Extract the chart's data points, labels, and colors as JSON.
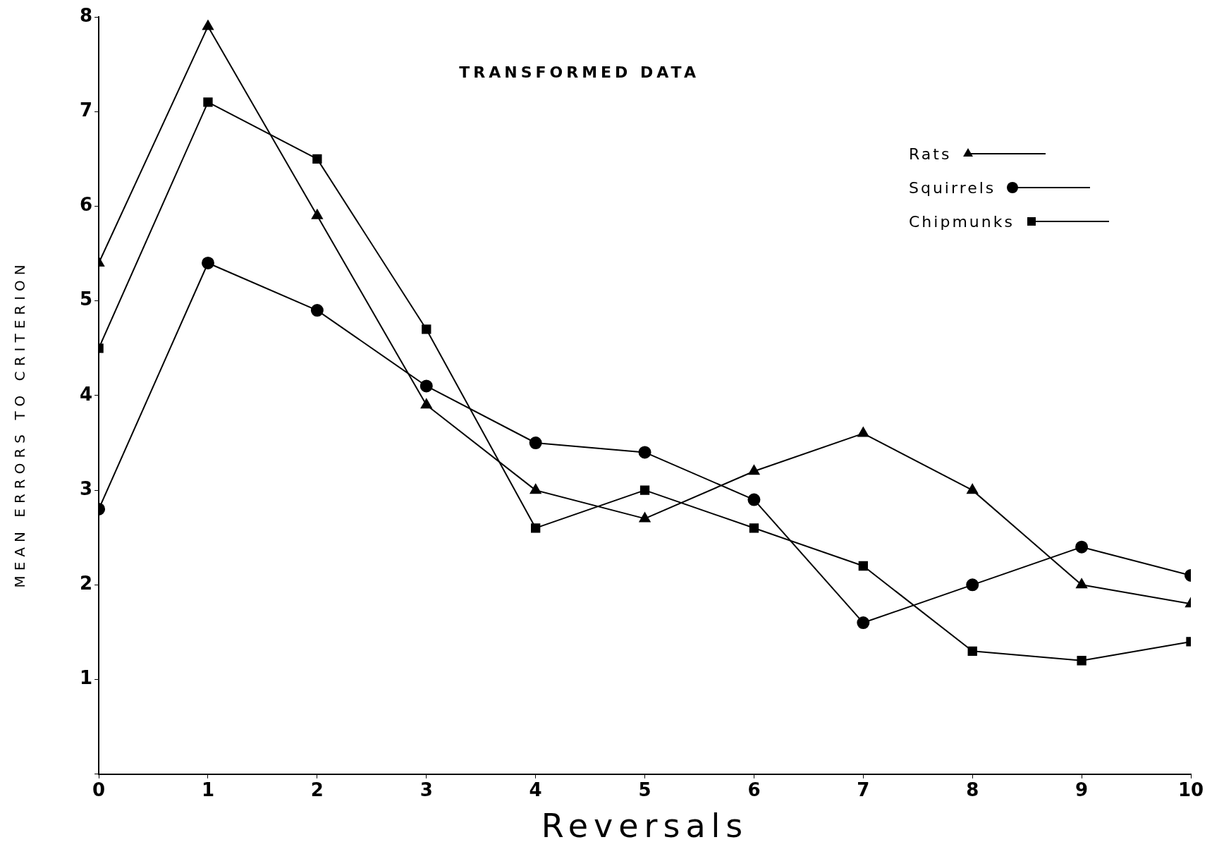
{
  "chart_data": {
    "type": "line",
    "title": "TRANSFORMED DATA",
    "xlabel": "Reversals",
    "ylabel": "MEAN ERRORS TO CRITERION",
    "x": [
      0,
      1,
      2,
      3,
      4,
      5,
      6,
      7,
      8,
      9,
      10
    ],
    "xlim": [
      0,
      10
    ],
    "xticks": [
      0,
      1,
      2,
      3,
      4,
      5,
      6,
      7,
      8,
      9,
      10
    ],
    "ylim": [
      0,
      8
    ],
    "yticks": [
      {
        "value": 0,
        "label": null
      },
      1,
      2,
      3,
      4,
      5,
      6,
      7,
      8
    ],
    "grid": false,
    "legend": "top right",
    "line_style": "solid",
    "series": [
      {
        "name": "Rats",
        "color": "#000000",
        "marker": "triangle",
        "values": [
          5.4,
          7.9,
          5.9,
          3.9,
          3.0,
          2.7,
          3.2,
          3.6,
          3.0,
          2.0,
          1.8
        ]
      },
      {
        "name": "Squirrels",
        "color": "#000000",
        "marker": "circle",
        "values": [
          2.8,
          5.4,
          4.9,
          4.1,
          3.5,
          3.4,
          2.9,
          1.6,
          2.0,
          2.4,
          2.1
        ]
      },
      {
        "name": "Chipmunks",
        "color": "#000000",
        "marker": "square",
        "values": [
          4.5,
          7.1,
          6.5,
          4.7,
          2.6,
          3.0,
          2.6,
          2.2,
          1.3,
          1.2,
          1.4
        ]
      }
    ]
  }
}
